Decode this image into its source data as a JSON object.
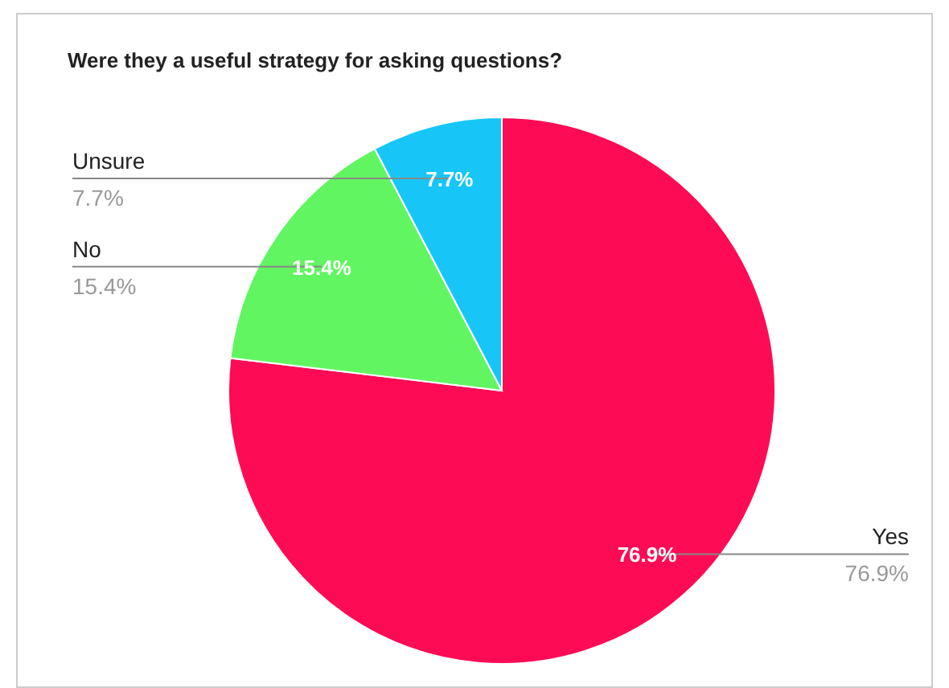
{
  "chart_data": {
    "type": "pie",
    "title": "Were they a useful strategy for asking questions?",
    "categories": [
      "Yes",
      "No",
      "Unsure"
    ],
    "values": [
      76.9,
      15.4,
      7.7
    ],
    "colors": [
      "#fe0b55",
      "#62f562",
      "#17c6f7"
    ],
    "value_labels": [
      "76.9%",
      "15.4%",
      "7.7%"
    ]
  }
}
